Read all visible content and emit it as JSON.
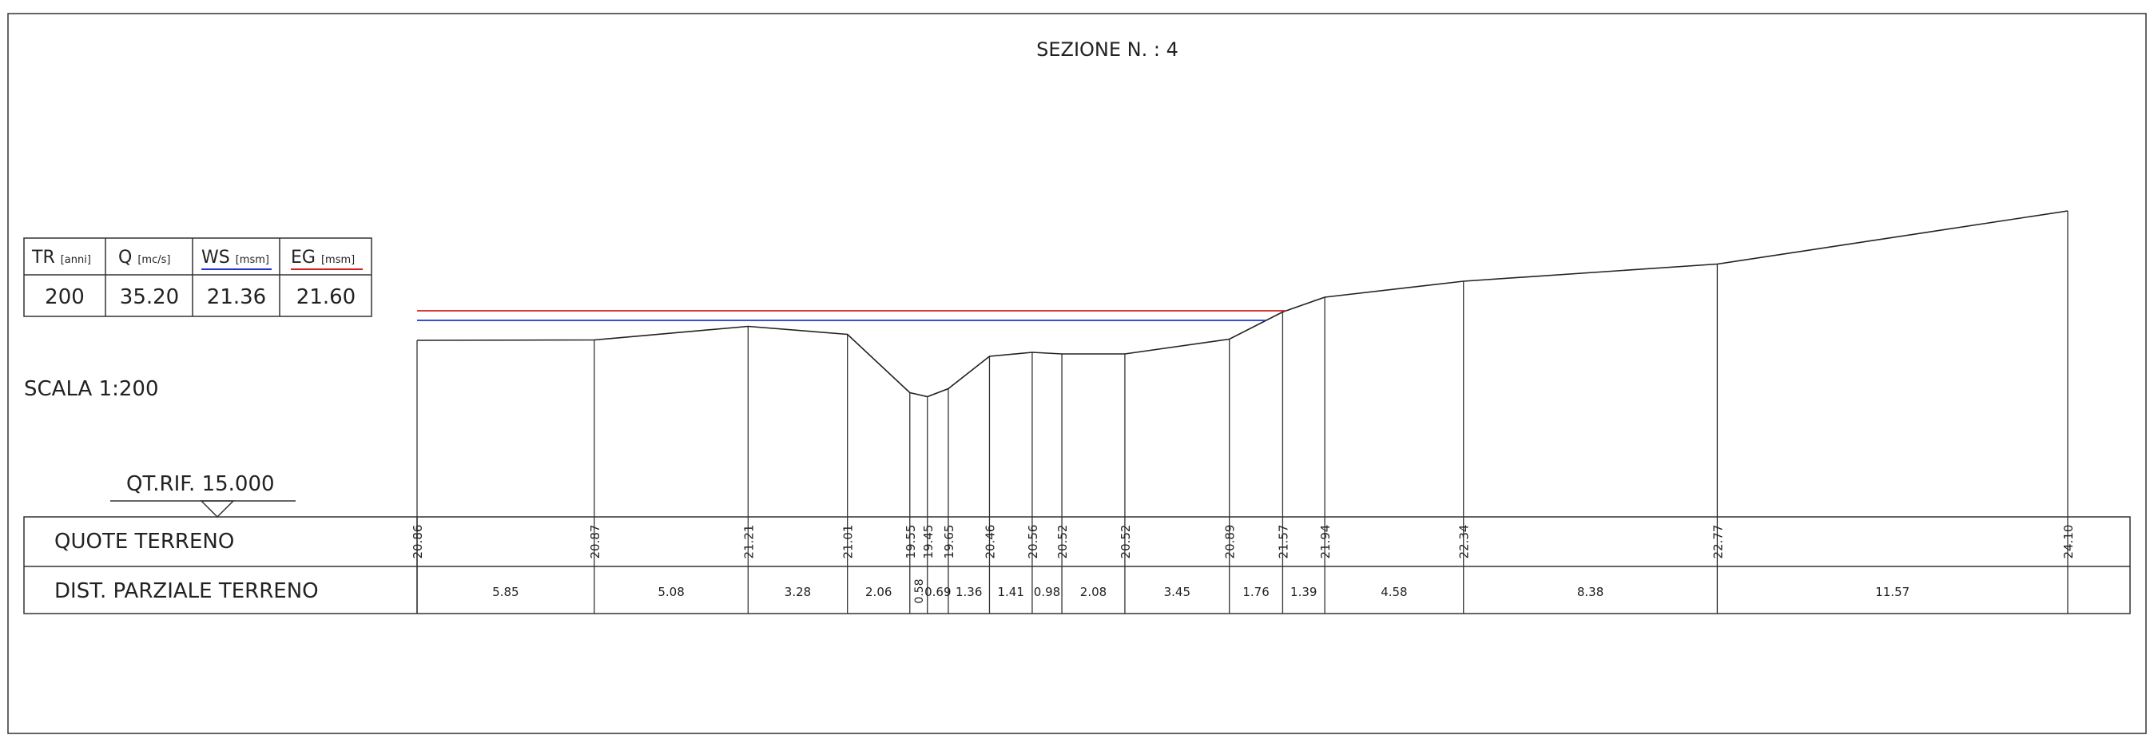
{
  "title": "SEZIONE N. : 4",
  "hydraulic_table": {
    "headers": [
      {
        "label": "TR",
        "unit": "[anni]"
      },
      {
        "label": "Q",
        "unit": "[mc/s]"
      },
      {
        "label": "WS",
        "unit": "[msm]"
      },
      {
        "label": "EG",
        "unit": "[msm]"
      }
    ],
    "values": [
      "200",
      "35.20",
      "21.36",
      "21.60"
    ]
  },
  "scale_label": "SCALA 1:200",
  "reference_label": "QT.RIF. 15.000",
  "reference_level": 15.0,
  "rows": {
    "elevations_label": "QUOTE TERRENO",
    "distances_label": "DIST. PARZIALE TERRENO"
  },
  "colors": {
    "water_surface": "#2233cc",
    "energy_grade": "#d42020",
    "ground": "#222222"
  },
  "chart_data": {
    "type": "line",
    "title": "SEZIONE N. : 4",
    "ground_elevations": [
      "20.86",
      "20.87",
      "21.21",
      "21.01",
      "19.55",
      "19.45",
      "19.65",
      "20.46",
      "20.56",
      "20.52",
      "20.52",
      "20.89",
      "21.57",
      "21.94",
      "22.34",
      "22.77",
      "24.10"
    ],
    "partial_distances": [
      "5.85",
      "5.08",
      "3.28",
      "2.06",
      "0.58",
      "0.69",
      "1.36",
      "1.41",
      "0.98",
      "2.08",
      "3.45",
      "1.76",
      "1.39",
      "4.58",
      "8.38",
      "11.57"
    ],
    "water_surface": 21.36,
    "energy_grade": 21.6,
    "reference_level": 15.0
  }
}
